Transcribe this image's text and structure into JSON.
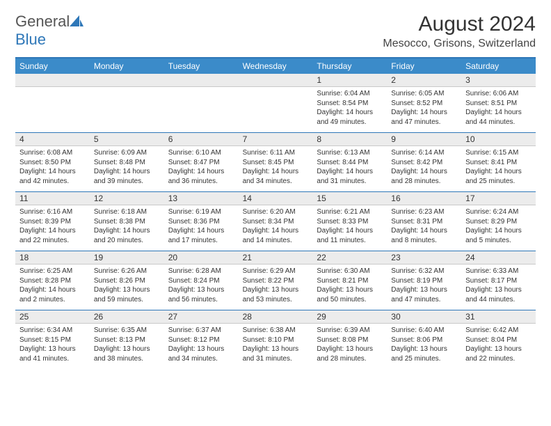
{
  "brand": {
    "part1": "General",
    "part2": "Blue"
  },
  "title": "August 2024",
  "location": "Mesocco, Grisons, Switzerland",
  "colors": {
    "accent": "#3b8bc9",
    "accent_dark": "#2e77b8",
    "daynum_bg": "#ececec",
    "text": "#333333",
    "background": "#ffffff"
  },
  "weekdays": [
    "Sunday",
    "Monday",
    "Tuesday",
    "Wednesday",
    "Thursday",
    "Friday",
    "Saturday"
  ],
  "weeks": [
    [
      {
        "n": "",
        "sr": "",
        "ss": "",
        "dl": ""
      },
      {
        "n": "",
        "sr": "",
        "ss": "",
        "dl": ""
      },
      {
        "n": "",
        "sr": "",
        "ss": "",
        "dl": ""
      },
      {
        "n": "",
        "sr": "",
        "ss": "",
        "dl": ""
      },
      {
        "n": "1",
        "sr": "Sunrise: 6:04 AM",
        "ss": "Sunset: 8:54 PM",
        "dl": "Daylight: 14 hours and 49 minutes."
      },
      {
        "n": "2",
        "sr": "Sunrise: 6:05 AM",
        "ss": "Sunset: 8:52 PM",
        "dl": "Daylight: 14 hours and 47 minutes."
      },
      {
        "n": "3",
        "sr": "Sunrise: 6:06 AM",
        "ss": "Sunset: 8:51 PM",
        "dl": "Daylight: 14 hours and 44 minutes."
      }
    ],
    [
      {
        "n": "4",
        "sr": "Sunrise: 6:08 AM",
        "ss": "Sunset: 8:50 PM",
        "dl": "Daylight: 14 hours and 42 minutes."
      },
      {
        "n": "5",
        "sr": "Sunrise: 6:09 AM",
        "ss": "Sunset: 8:48 PM",
        "dl": "Daylight: 14 hours and 39 minutes."
      },
      {
        "n": "6",
        "sr": "Sunrise: 6:10 AM",
        "ss": "Sunset: 8:47 PM",
        "dl": "Daylight: 14 hours and 36 minutes."
      },
      {
        "n": "7",
        "sr": "Sunrise: 6:11 AM",
        "ss": "Sunset: 8:45 PM",
        "dl": "Daylight: 14 hours and 34 minutes."
      },
      {
        "n": "8",
        "sr": "Sunrise: 6:13 AM",
        "ss": "Sunset: 8:44 PM",
        "dl": "Daylight: 14 hours and 31 minutes."
      },
      {
        "n": "9",
        "sr": "Sunrise: 6:14 AM",
        "ss": "Sunset: 8:42 PM",
        "dl": "Daylight: 14 hours and 28 minutes."
      },
      {
        "n": "10",
        "sr": "Sunrise: 6:15 AM",
        "ss": "Sunset: 8:41 PM",
        "dl": "Daylight: 14 hours and 25 minutes."
      }
    ],
    [
      {
        "n": "11",
        "sr": "Sunrise: 6:16 AM",
        "ss": "Sunset: 8:39 PM",
        "dl": "Daylight: 14 hours and 22 minutes."
      },
      {
        "n": "12",
        "sr": "Sunrise: 6:18 AM",
        "ss": "Sunset: 8:38 PM",
        "dl": "Daylight: 14 hours and 20 minutes."
      },
      {
        "n": "13",
        "sr": "Sunrise: 6:19 AM",
        "ss": "Sunset: 8:36 PM",
        "dl": "Daylight: 14 hours and 17 minutes."
      },
      {
        "n": "14",
        "sr": "Sunrise: 6:20 AM",
        "ss": "Sunset: 8:34 PM",
        "dl": "Daylight: 14 hours and 14 minutes."
      },
      {
        "n": "15",
        "sr": "Sunrise: 6:21 AM",
        "ss": "Sunset: 8:33 PM",
        "dl": "Daylight: 14 hours and 11 minutes."
      },
      {
        "n": "16",
        "sr": "Sunrise: 6:23 AM",
        "ss": "Sunset: 8:31 PM",
        "dl": "Daylight: 14 hours and 8 minutes."
      },
      {
        "n": "17",
        "sr": "Sunrise: 6:24 AM",
        "ss": "Sunset: 8:29 PM",
        "dl": "Daylight: 14 hours and 5 minutes."
      }
    ],
    [
      {
        "n": "18",
        "sr": "Sunrise: 6:25 AM",
        "ss": "Sunset: 8:28 PM",
        "dl": "Daylight: 14 hours and 2 minutes."
      },
      {
        "n": "19",
        "sr": "Sunrise: 6:26 AM",
        "ss": "Sunset: 8:26 PM",
        "dl": "Daylight: 13 hours and 59 minutes."
      },
      {
        "n": "20",
        "sr": "Sunrise: 6:28 AM",
        "ss": "Sunset: 8:24 PM",
        "dl": "Daylight: 13 hours and 56 minutes."
      },
      {
        "n": "21",
        "sr": "Sunrise: 6:29 AM",
        "ss": "Sunset: 8:22 PM",
        "dl": "Daylight: 13 hours and 53 minutes."
      },
      {
        "n": "22",
        "sr": "Sunrise: 6:30 AM",
        "ss": "Sunset: 8:21 PM",
        "dl": "Daylight: 13 hours and 50 minutes."
      },
      {
        "n": "23",
        "sr": "Sunrise: 6:32 AM",
        "ss": "Sunset: 8:19 PM",
        "dl": "Daylight: 13 hours and 47 minutes."
      },
      {
        "n": "24",
        "sr": "Sunrise: 6:33 AM",
        "ss": "Sunset: 8:17 PM",
        "dl": "Daylight: 13 hours and 44 minutes."
      }
    ],
    [
      {
        "n": "25",
        "sr": "Sunrise: 6:34 AM",
        "ss": "Sunset: 8:15 PM",
        "dl": "Daylight: 13 hours and 41 minutes."
      },
      {
        "n": "26",
        "sr": "Sunrise: 6:35 AM",
        "ss": "Sunset: 8:13 PM",
        "dl": "Daylight: 13 hours and 38 minutes."
      },
      {
        "n": "27",
        "sr": "Sunrise: 6:37 AM",
        "ss": "Sunset: 8:12 PM",
        "dl": "Daylight: 13 hours and 34 minutes."
      },
      {
        "n": "28",
        "sr": "Sunrise: 6:38 AM",
        "ss": "Sunset: 8:10 PM",
        "dl": "Daylight: 13 hours and 31 minutes."
      },
      {
        "n": "29",
        "sr": "Sunrise: 6:39 AM",
        "ss": "Sunset: 8:08 PM",
        "dl": "Daylight: 13 hours and 28 minutes."
      },
      {
        "n": "30",
        "sr": "Sunrise: 6:40 AM",
        "ss": "Sunset: 8:06 PM",
        "dl": "Daylight: 13 hours and 25 minutes."
      },
      {
        "n": "31",
        "sr": "Sunrise: 6:42 AM",
        "ss": "Sunset: 8:04 PM",
        "dl": "Daylight: 13 hours and 22 minutes."
      }
    ]
  ]
}
